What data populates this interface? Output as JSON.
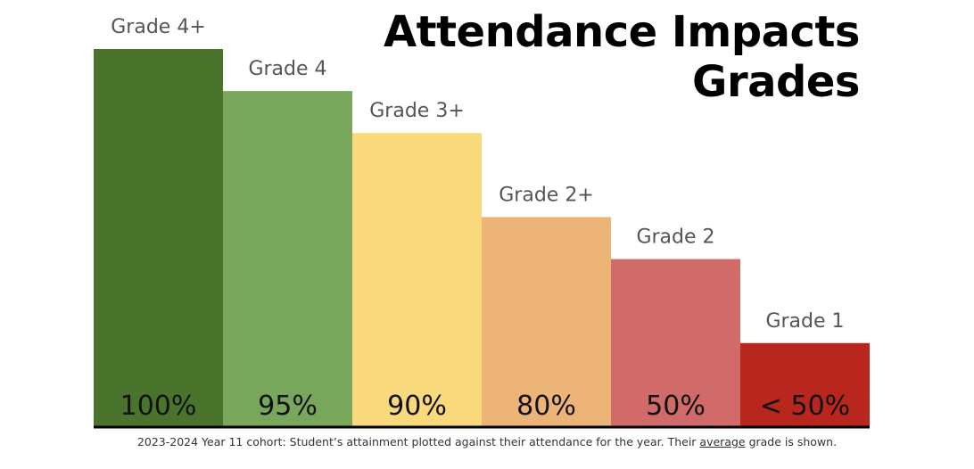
{
  "chart_data": {
    "type": "bar",
    "title_lines": [
      "Attendance Impacts",
      "Grades"
    ],
    "categories": [
      "100%",
      "95%",
      "90%",
      "80%",
      "50%",
      "< 50%"
    ],
    "values": [
      4.5,
      4,
      3.5,
      2.5,
      2,
      1
    ],
    "data_labels": [
      "Grade 4+",
      "Grade 4",
      "Grade 3+",
      "Grade 2+",
      "Grade 2",
      "Grade 1"
    ],
    "colors": [
      "#4a732b",
      "#78a65a",
      "#f8d97c",
      "#edb478",
      "#d06b69",
      "#b9261e"
    ],
    "ylim": [
      0,
      4.9
    ],
    "xlabel": "",
    "ylabel": "",
    "grid": false
  },
  "caption": {
    "before": "2023-2024 Year 11 cohort: Student’s attainment plotted against their attendance for the year. Their ",
    "underlined": "average",
    "after": " grade is shown."
  }
}
